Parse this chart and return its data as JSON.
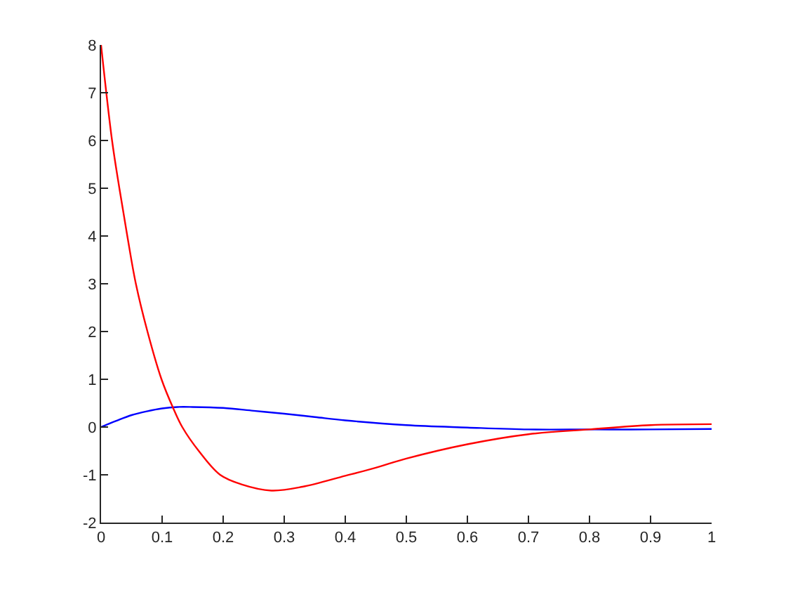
{
  "chart_data": {
    "type": "line",
    "xlim": [
      0,
      1
    ],
    "ylim": [
      -2,
      8
    ],
    "xticks": [
      0,
      0.1,
      0.2,
      0.3,
      0.4,
      0.5,
      0.6,
      0.7,
      0.8,
      0.9,
      1
    ],
    "yticks": [
      -2,
      -1,
      0,
      1,
      2,
      3,
      4,
      5,
      6,
      7,
      8
    ],
    "marker": "none",
    "line_style": "solid",
    "series": [
      {
        "color": "#0000ff",
        "x": [
          0,
          0.025,
          0.05,
          0.075,
          0.1,
          0.125,
          0.15,
          0.2,
          0.25,
          0.3,
          0.35,
          0.4,
          0.5,
          0.6,
          0.7,
          0.8,
          0.9,
          1
        ],
        "values": [
          0,
          0.13,
          0.25,
          0.33,
          0.39,
          0.42,
          0.42,
          0.4,
          0.34,
          0.28,
          0.21,
          0.14,
          0.04,
          -0.01,
          -0.05,
          -0.05,
          -0.05,
          -0.04
        ]
      },
      {
        "color": "#ff0000",
        "x": [
          0,
          0.018,
          0.03,
          0.043,
          0.057,
          0.076,
          0.099,
          0.118,
          0.133,
          0.16,
          0.195,
          0.23,
          0.279,
          0.33,
          0.4,
          0.45,
          0.5,
          0.6,
          0.7,
          0.8,
          0.9,
          1
        ],
        "values": [
          8,
          6,
          5,
          4,
          3,
          2,
          1,
          0.4,
          0,
          -0.5,
          -1,
          -1.2,
          -1.33,
          -1.25,
          -1.02,
          -0.85,
          -0.66,
          -0.36,
          -0.15,
          -0.05,
          0.04,
          0.06
        ]
      }
    ]
  }
}
